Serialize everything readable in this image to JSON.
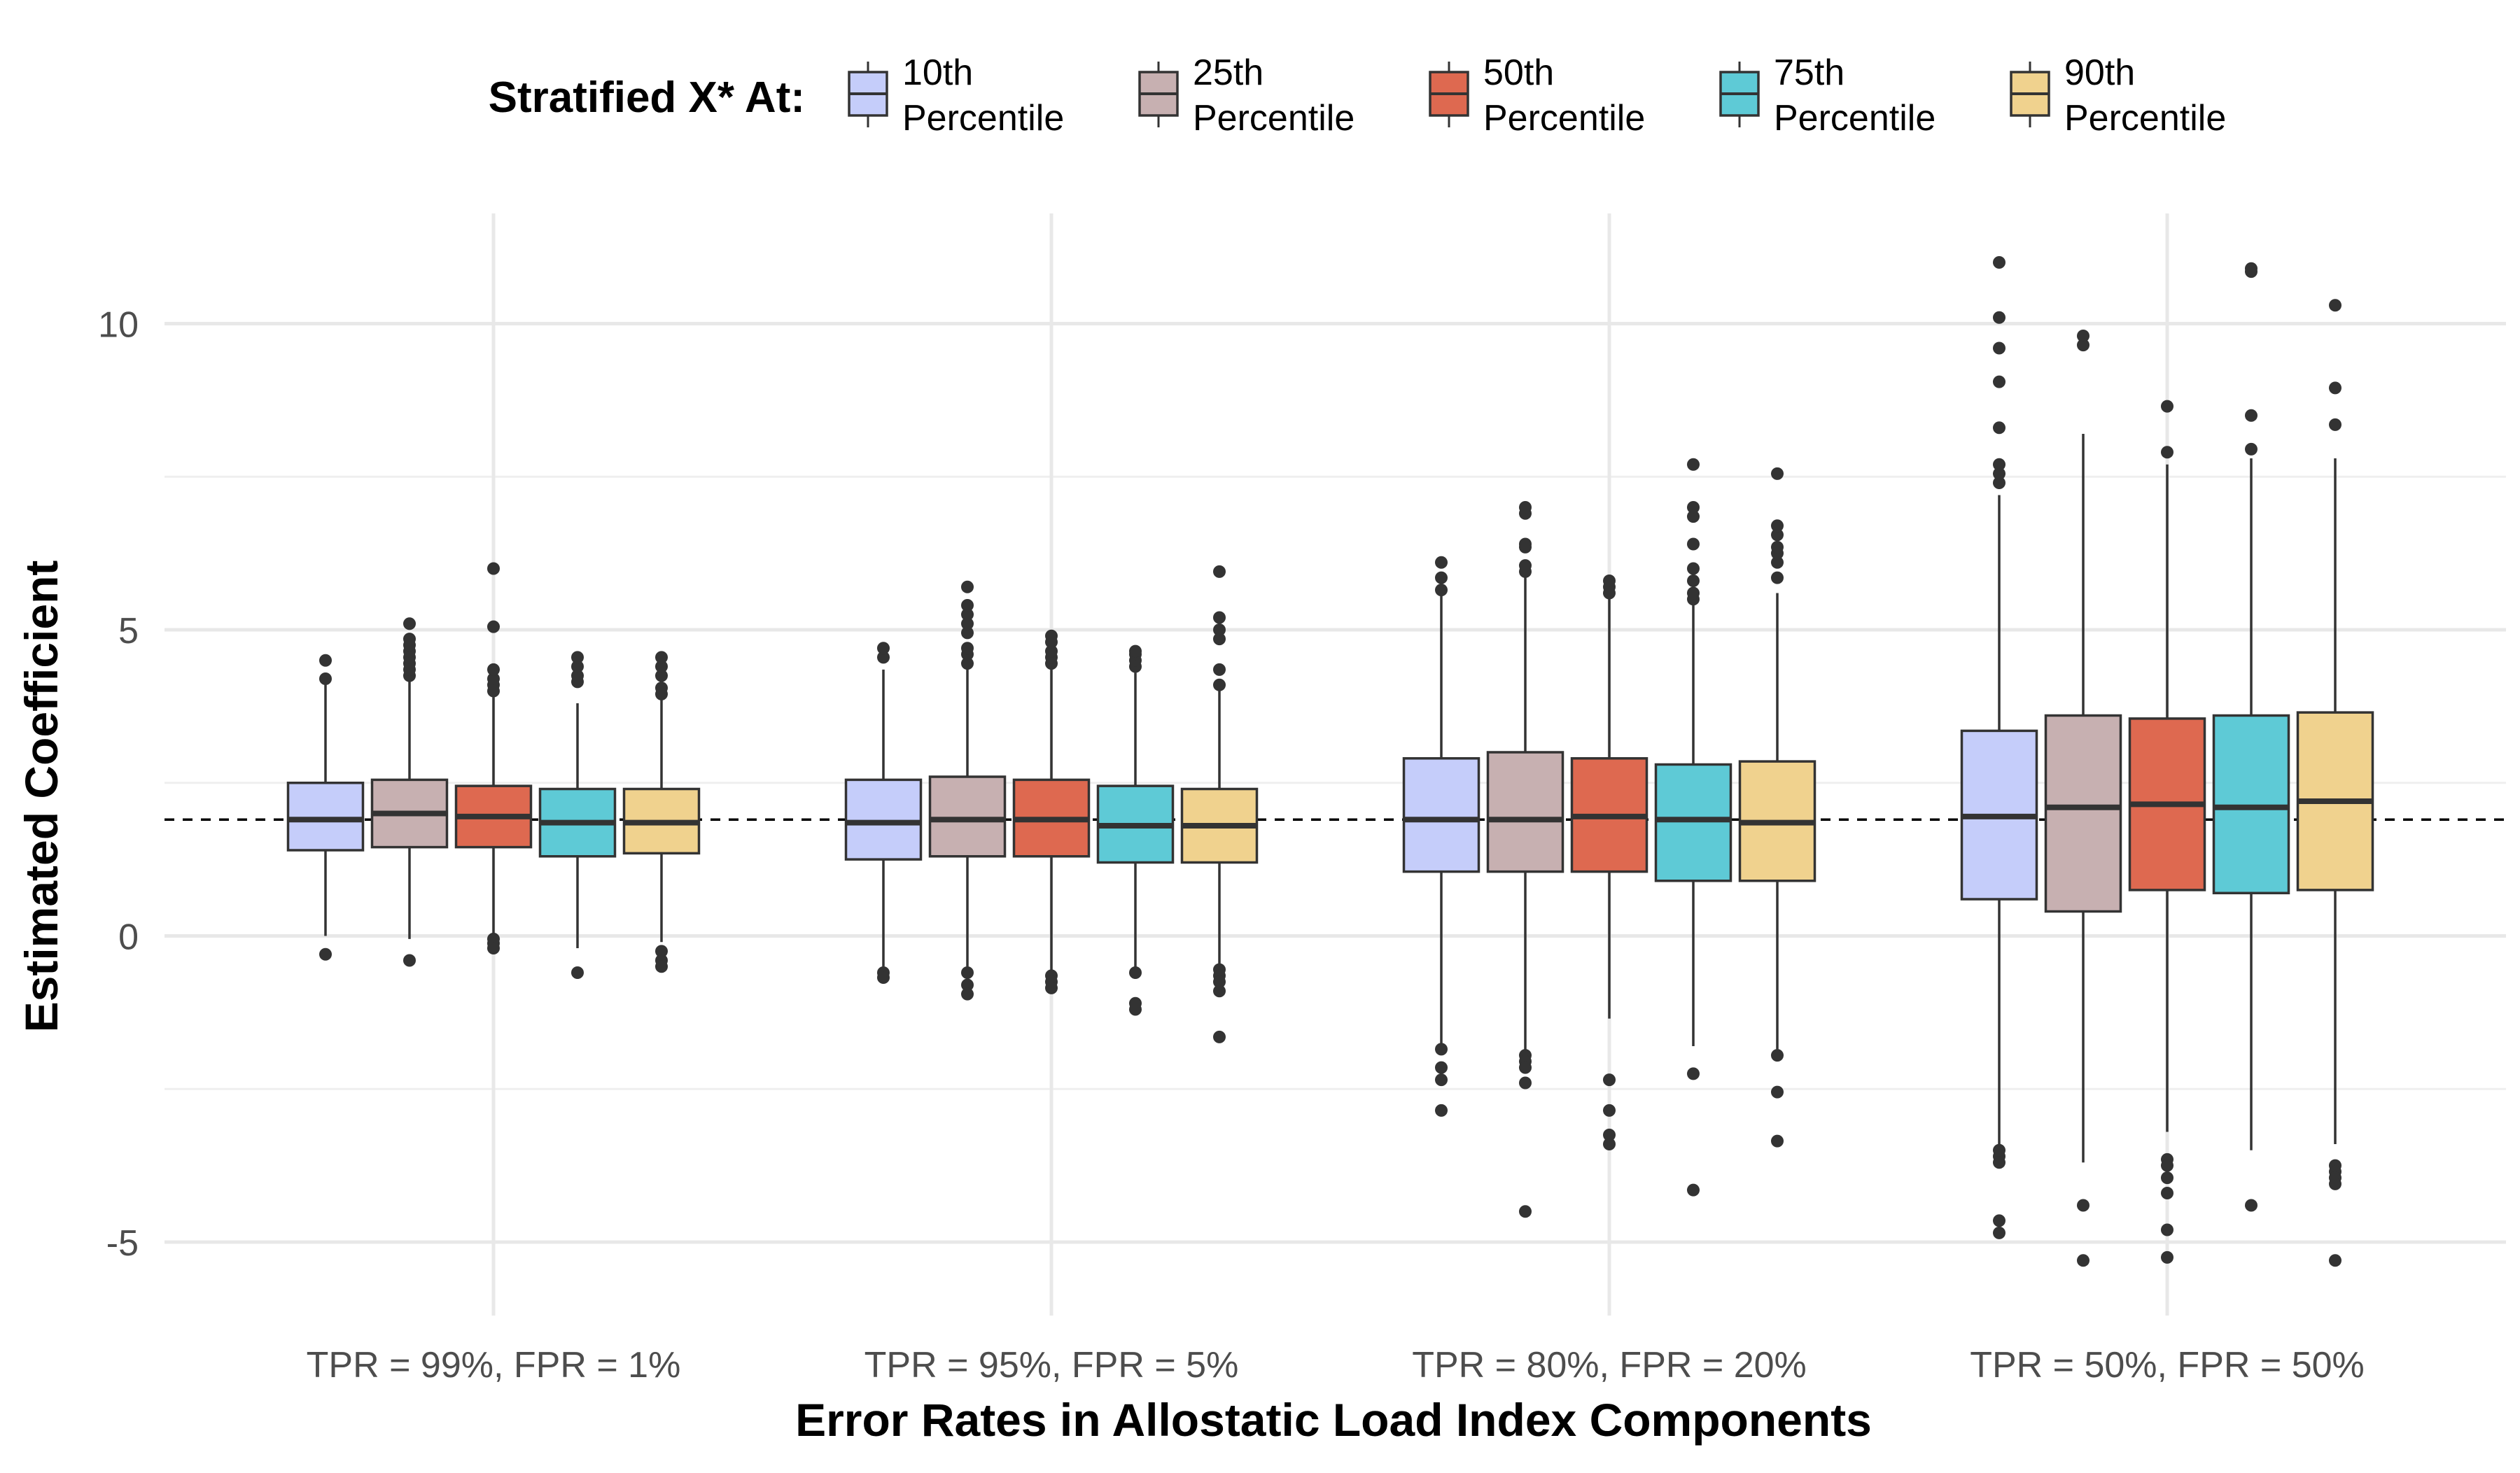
{
  "chart_data": {
    "type": "box",
    "xlabel": "Error Rates in Allostatic Load Index Components",
    "ylabel": "Estimated Coefficient",
    "ylim": [
      -6.2,
      11.8
    ],
    "yticks": [
      -5,
      0,
      5,
      10
    ],
    "ytick_labels": [
      "-5",
      "0",
      "5",
      "10"
    ],
    "reference_line": {
      "y": 1.9,
      "style": "dashed"
    },
    "grid": true,
    "legend": {
      "title": "Stratified X* At:",
      "position": "top",
      "items": [
        {
          "line1": "10th",
          "line2": "Percentile",
          "color": "#c5cdfa"
        },
        {
          "line1": "25th",
          "line2": "Percentile",
          "color": "#c7b0b1"
        },
        {
          "line1": "50th",
          "line2": "Percentile",
          "color": "#de6950"
        },
        {
          "line1": "75th",
          "line2": "Percentile",
          "color": "#5ecad6"
        },
        {
          "line1": "90th",
          "line2": "Percentile",
          "color": "#f0d28e"
        }
      ]
    },
    "categories": [
      "TPR = 99%, FPR = 1%",
      "TPR = 95%, FPR = 5%",
      "TPR = 80%, FPR = 20%",
      "TPR = 50%, FPR = 50%"
    ],
    "groups": [
      {
        "category": "TPR = 99%, FPR = 1%",
        "boxes": [
          {
            "q1": 1.4,
            "median": 1.9,
            "q3": 2.5,
            "lower": 0.0,
            "upper": 4.1,
            "outliers": [
              4.2,
              4.5,
              -0.3
            ]
          },
          {
            "q1": 1.45,
            "median": 2.0,
            "q3": 2.55,
            "lower": -0.05,
            "upper": 4.2,
            "outliers": [
              4.25,
              4.35,
              4.45,
              4.55,
              4.65,
              4.75,
              4.85,
              5.1,
              -0.4
            ]
          },
          {
            "q1": 1.45,
            "median": 1.95,
            "q3": 2.45,
            "lower": 0.0,
            "upper": 3.9,
            "outliers": [
              4.0,
              4.1,
              4.2,
              4.35,
              5.05,
              6.0,
              -0.05,
              -0.12,
              -0.2
            ]
          },
          {
            "q1": 1.3,
            "median": 1.85,
            "q3": 2.4,
            "lower": -0.2,
            "upper": 3.8,
            "outliers": [
              4.15,
              4.25,
              4.4,
              4.55,
              -0.6
            ]
          },
          {
            "q1": 1.35,
            "median": 1.85,
            "q3": 2.4,
            "lower": -0.1,
            "upper": 3.9,
            "outliers": [
              3.95,
              4.05,
              4.25,
              4.4,
              4.55,
              -0.25,
              -0.4,
              -0.5
            ]
          }
        ]
      },
      {
        "category": "TPR = 95%, FPR = 5%",
        "boxes": [
          {
            "q1": 1.25,
            "median": 1.85,
            "q3": 2.55,
            "lower": -0.5,
            "upper": 4.35,
            "outliers": [
              4.55,
              4.7,
              -0.6,
              -0.68
            ]
          },
          {
            "q1": 1.3,
            "median": 1.9,
            "q3": 2.6,
            "lower": -0.5,
            "upper": 4.4,
            "outliers": [
              4.45,
              4.6,
              4.7,
              4.95,
              5.1,
              5.25,
              5.4,
              5.7,
              -0.6,
              -0.8,
              -0.95
            ]
          },
          {
            "q1": 1.3,
            "median": 1.9,
            "q3": 2.55,
            "lower": -0.55,
            "upper": 4.35,
            "outliers": [
              4.45,
              4.55,
              4.65,
              4.8,
              4.9,
              -0.65,
              -0.75,
              -0.85
            ]
          },
          {
            "q1": 1.2,
            "median": 1.8,
            "q3": 2.45,
            "lower": -0.55,
            "upper": 4.3,
            "outliers": [
              4.4,
              4.5,
              4.6,
              4.65,
              -0.6,
              -1.1,
              -1.2
            ]
          },
          {
            "q1": 1.2,
            "median": 1.8,
            "q3": 2.4,
            "lower": -0.5,
            "upper": 4.05,
            "outliers": [
              4.1,
              4.35,
              4.85,
              5.0,
              5.2,
              5.95,
              -0.55,
              -0.65,
              -0.75,
              -0.9,
              -1.65
            ]
          }
        ]
      },
      {
        "category": "TPR = 80%, FPR = 20%",
        "boxes": [
          {
            "q1": 1.05,
            "median": 1.9,
            "q3": 2.9,
            "lower": -1.8,
            "upper": 5.6,
            "outliers": [
              5.65,
              5.85,
              6.1,
              -1.85,
              -2.15,
              -2.35,
              -2.85
            ]
          },
          {
            "q1": 1.05,
            "median": 1.9,
            "q3": 3.0,
            "lower": -1.9,
            "upper": 5.9,
            "outliers": [
              5.95,
              6.05,
              6.35,
              6.4,
              6.9,
              7.0,
              -1.95,
              -2.05,
              -2.15,
              -2.4,
              -4.5
            ]
          },
          {
            "q1": 1.05,
            "median": 1.95,
            "q3": 2.9,
            "lower": -1.35,
            "upper": 5.55,
            "outliers": [
              5.6,
              5.7,
              5.8,
              -2.35,
              -2.85,
              -3.25,
              -3.4
            ]
          },
          {
            "q1": 0.9,
            "median": 1.9,
            "q3": 2.8,
            "lower": -1.8,
            "upper": 5.45,
            "outliers": [
              5.5,
              5.6,
              5.8,
              6.0,
              6.4,
              6.85,
              7.0,
              7.7,
              -2.25,
              -4.15
            ]
          },
          {
            "q1": 0.9,
            "median": 1.85,
            "q3": 2.85,
            "lower": -1.85,
            "upper": 5.6,
            "outliers": [
              5.85,
              6.1,
              6.25,
              6.35,
              6.55,
              6.7,
              7.55,
              -1.95,
              -2.55,
              -3.35
            ]
          }
        ]
      },
      {
        "category": "TPR = 50%, FPR = 50%",
        "boxes": [
          {
            "q1": 0.6,
            "median": 1.95,
            "q3": 3.35,
            "lower": -3.45,
            "upper": 7.2,
            "outliers": [
              7.4,
              7.55,
              7.7,
              8.3,
              9.05,
              9.6,
              10.1,
              11.0,
              -3.5,
              -3.6,
              -3.7,
              -4.65,
              -4.85
            ]
          },
          {
            "q1": 0.4,
            "median": 2.1,
            "q3": 3.6,
            "lower": -3.7,
            "upper": 8.2,
            "outliers": [
              9.65,
              9.8,
              -4.4,
              -5.3
            ]
          },
          {
            "q1": 0.75,
            "median": 2.15,
            "q3": 3.55,
            "lower": -3.2,
            "upper": 7.7,
            "outliers": [
              7.9,
              8.65,
              -3.65,
              -3.75,
              -3.95,
              -4.2,
              -4.8,
              -5.25
            ]
          },
          {
            "q1": 0.7,
            "median": 2.1,
            "q3": 3.6,
            "lower": -3.5,
            "upper": 7.8,
            "outliers": [
              7.95,
              8.5,
              10.85,
              10.9,
              -4.4
            ]
          },
          {
            "q1": 0.75,
            "median": 2.2,
            "q3": 3.65,
            "lower": -3.4,
            "upper": 7.8,
            "outliers": [
              8.35,
              8.95,
              10.3,
              -3.75,
              -3.85,
              -3.95,
              -4.05,
              -5.3
            ]
          }
        ]
      }
    ]
  }
}
